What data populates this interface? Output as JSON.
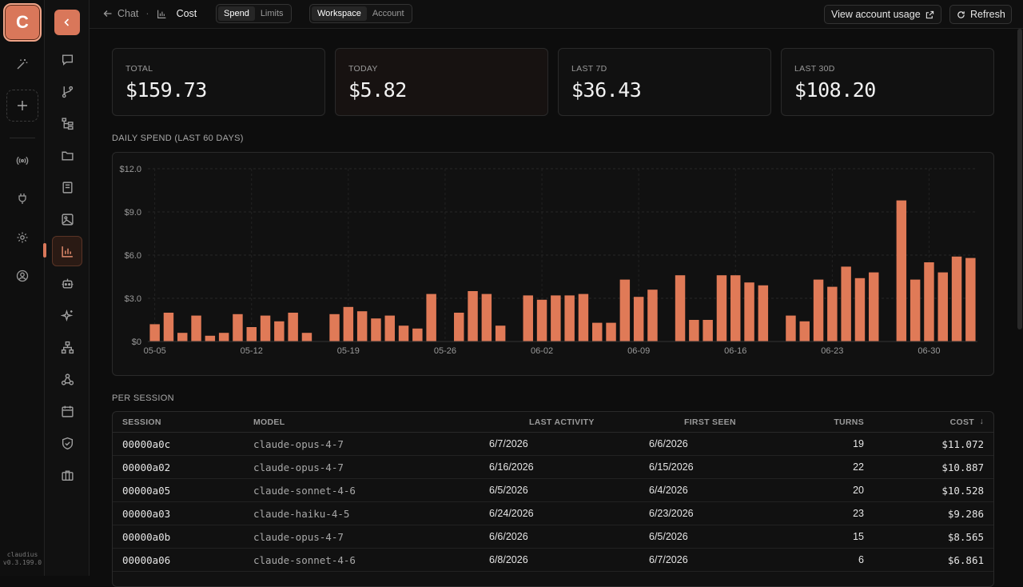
{
  "rail": {
    "logo_letter": "C",
    "icons": [
      "wand-icon",
      "add-workspace-icon",
      "broadcast-icon",
      "plug-icon",
      "gear-icon",
      "account-icon"
    ],
    "app_name": "claudius",
    "version": "v0.3.199.0"
  },
  "nav": {
    "items": [
      "chat-icon",
      "git-branch-icon",
      "tree-icon",
      "folder-icon",
      "book-icon",
      "image-icon",
      "bar-chart-icon",
      "bot-icon",
      "sparkle-icon",
      "network-icon",
      "webhook-icon",
      "calendar-icon",
      "shield-check-icon",
      "briefcase-icon"
    ],
    "active": "bar-chart-icon"
  },
  "topbar": {
    "back_label": "Chat",
    "separator": "·",
    "page_title": "Cost",
    "view_tabs": [
      "Spend",
      "Limits"
    ],
    "view_active": "Spend",
    "scope_tabs": [
      "Workspace",
      "Account"
    ],
    "scope_active": "Workspace",
    "account_usage_label": "View account usage",
    "refresh_label": "Refresh"
  },
  "stats": [
    {
      "label": "TOTAL",
      "value": "$159.73"
    },
    {
      "label": "TODAY",
      "value": "$5.82"
    },
    {
      "label": "LAST 7D",
      "value": "$36.43"
    },
    {
      "label": "LAST 30D",
      "value": "$108.20"
    }
  ],
  "chart_section_title": "DAILY SPEND (LAST 60 DAYS)",
  "chart_data": {
    "type": "bar",
    "color": "#e07a57",
    "title": "DAILY SPEND (LAST 60 DAYS)",
    "ylim": [
      0,
      12
    ],
    "yticks": [
      "$0",
      "$3.0",
      "$6.0",
      "$9.0",
      "$12.0"
    ],
    "ytick_values": [
      0,
      3,
      6,
      9,
      12
    ],
    "xtick_labels": [
      {
        "index": 0,
        "label": "05-05"
      },
      {
        "index": 7,
        "label": "05-12"
      },
      {
        "index": 14,
        "label": "05-19"
      },
      {
        "index": 21,
        "label": "05-26"
      },
      {
        "index": 28,
        "label": "06-02"
      },
      {
        "index": 35,
        "label": "06-09"
      },
      {
        "index": 42,
        "label": "06-16"
      },
      {
        "index": 49,
        "label": "06-23"
      },
      {
        "index": 56,
        "label": "06-30"
      }
    ],
    "categories": [
      "05-05",
      "05-06",
      "05-07",
      "05-08",
      "05-09",
      "05-10",
      "05-11",
      "05-12",
      "05-13",
      "05-14",
      "05-15",
      "05-16",
      "05-17",
      "05-18",
      "05-19",
      "05-20",
      "05-21",
      "05-22",
      "05-23",
      "05-24",
      "05-25",
      "05-26",
      "05-27",
      "05-28",
      "05-29",
      "05-30",
      "05-31",
      "06-01",
      "06-02",
      "06-03",
      "06-04",
      "06-05",
      "06-06",
      "06-07",
      "06-08",
      "06-09",
      "06-10",
      "06-11",
      "06-12",
      "06-13",
      "06-14",
      "06-15",
      "06-16",
      "06-17",
      "06-18",
      "06-19",
      "06-20",
      "06-21",
      "06-22",
      "06-23",
      "06-24",
      "06-25",
      "06-26",
      "06-27",
      "06-28",
      "06-29",
      "06-30",
      "07-01",
      "07-02",
      "07-03"
    ],
    "values": [
      1.2,
      2.0,
      0.6,
      1.8,
      0.4,
      0.6,
      1.9,
      1.0,
      1.8,
      1.4,
      2.0,
      0.6,
      0,
      1.9,
      2.4,
      2.1,
      1.6,
      1.8,
      1.1,
      0.9,
      3.3,
      0,
      2.0,
      3.5,
      3.3,
      1.1,
      0,
      3.2,
      2.9,
      3.2,
      3.2,
      3.3,
      1.3,
      1.3,
      4.3,
      3.1,
      3.6,
      0,
      4.6,
      1.5,
      1.5,
      4.6,
      4.6,
      4.1,
      3.9,
      0,
      1.8,
      1.4,
      4.3,
      3.8,
      5.2,
      4.4,
      4.8,
      0,
      9.8,
      4.3,
      5.5,
      4.8,
      5.9,
      5.8
    ]
  },
  "table_section_title": "PER SESSION",
  "table": {
    "columns": {
      "session": "SESSION",
      "model": "MODEL",
      "last_activity": "LAST ACTIVITY",
      "first_seen": "FIRST SEEN",
      "turns": "TURNS",
      "cost": "COST"
    },
    "sort_indicator": "↓",
    "rows": [
      {
        "session": "00000a0c",
        "model": "claude-opus-4-7",
        "last_activity": "6/7/2026",
        "first_seen": "6/6/2026",
        "turns": "19",
        "cost": "$11.072"
      },
      {
        "session": "00000a02",
        "model": "claude-opus-4-7",
        "last_activity": "6/16/2026",
        "first_seen": "6/15/2026",
        "turns": "22",
        "cost": "$10.887"
      },
      {
        "session": "00000a05",
        "model": "claude-sonnet-4-6",
        "last_activity": "6/5/2026",
        "first_seen": "6/4/2026",
        "turns": "20",
        "cost": "$10.528"
      },
      {
        "session": "00000a03",
        "model": "claude-haiku-4-5",
        "last_activity": "6/24/2026",
        "first_seen": "6/23/2026",
        "turns": "23",
        "cost": "$9.286"
      },
      {
        "session": "00000a0b",
        "model": "claude-opus-4-7",
        "last_activity": "6/6/2026",
        "first_seen": "6/5/2026",
        "turns": "15",
        "cost": "$8.565"
      },
      {
        "session": "00000a06",
        "model": "claude-sonnet-4-6",
        "last_activity": "6/8/2026",
        "first_seen": "6/7/2026",
        "turns": "6",
        "cost": "$6.861"
      }
    ]
  }
}
